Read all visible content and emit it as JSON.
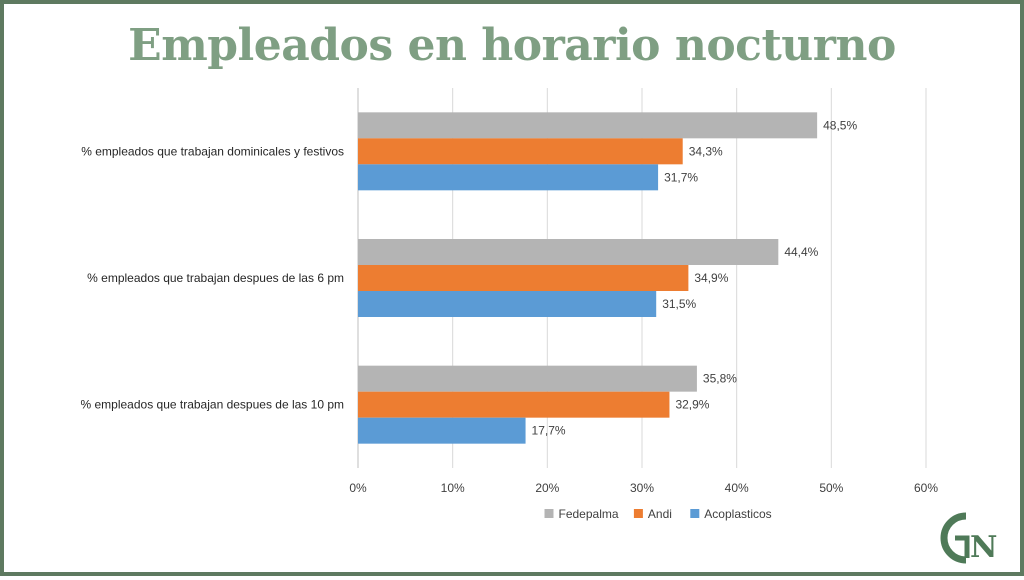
{
  "slide": {
    "title": "Empleados en horario nocturno"
  },
  "logo": {
    "text": "GN",
    "color": "#4f7a58"
  },
  "chart_data": {
    "type": "bar",
    "orientation": "horizontal",
    "title": "Empleados en horario nocturno",
    "categories": [
      "% empleados que trabajan dominicales y festivos",
      "% empleados que trabajan despues de las 6 pm",
      "% empleados que trabajan despues de las 10 pm"
    ],
    "series": [
      {
        "name": "Fedepalma",
        "color": "#b4b4b4",
        "values": [
          48.5,
          44.4,
          35.8
        ],
        "labels": [
          "48,5%",
          "44,4%",
          "35,8%"
        ]
      },
      {
        "name": "Andi",
        "color": "#ed7d31",
        "values": [
          34.3,
          34.9,
          32.9
        ],
        "labels": [
          "34,3%",
          "34,9%",
          "32,9%"
        ]
      },
      {
        "name": "Acoplasticos",
        "color": "#5b9bd5",
        "values": [
          31.7,
          31.5,
          17.7
        ],
        "labels": [
          "31,7%",
          "31,5%",
          "17,7%"
        ]
      }
    ],
    "xlim": [
      0,
      60
    ],
    "xticks": [
      0,
      10,
      20,
      30,
      40,
      50,
      60
    ],
    "xtick_labels": [
      "0%",
      "10%",
      "20%",
      "30%",
      "40%",
      "50%",
      "60%"
    ],
    "grid": true,
    "legend_position": "bottom"
  }
}
